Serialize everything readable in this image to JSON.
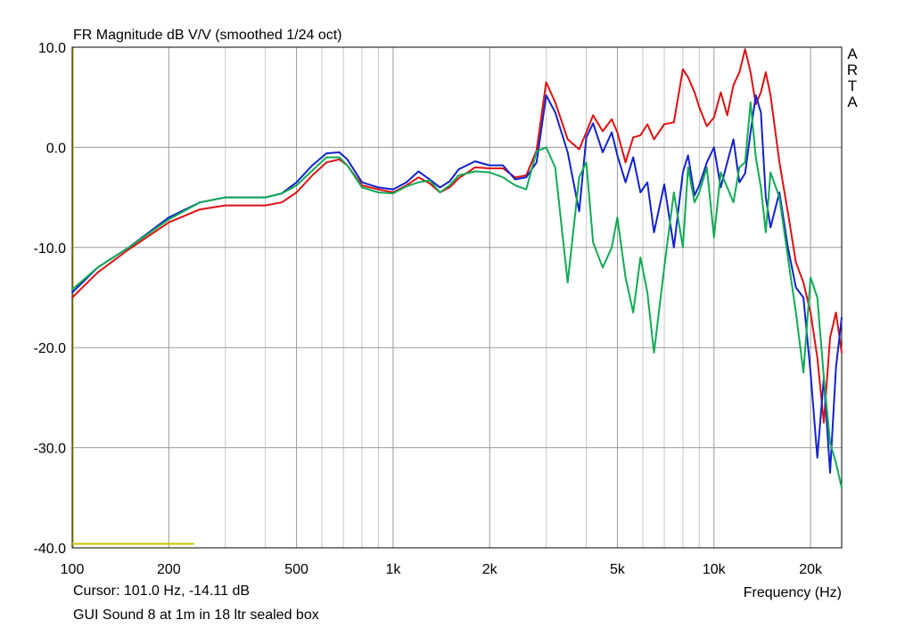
{
  "chart_data": {
    "type": "line",
    "title": "FR Magnitude dB V/V (smoothed 1/24 oct)",
    "xlabel": "Frequency (Hz)",
    "ylabel": "",
    "xscale": "log",
    "xlim": [
      100,
      25000
    ],
    "ylim": [
      -40,
      10
    ],
    "grid": true,
    "x_ticks": [
      100,
      200,
      500,
      1000,
      2000,
      5000,
      10000,
      20000
    ],
    "x_tick_labels": [
      "100",
      "200",
      "500",
      "1k",
      "2k",
      "5k",
      "10k",
      "20k"
    ],
    "y_ticks": [
      10,
      0,
      -10,
      -20,
      -30,
      -40
    ],
    "y_tick_labels": [
      "10.0",
      "0.0",
      "-10.0",
      "-20.0",
      "-30.0",
      "-40.0"
    ],
    "marker": {
      "x": [
        100,
        240
      ],
      "y": -39.6,
      "color": "#c8c000"
    },
    "series": [
      {
        "color": "#dd1111",
        "x": [
          100,
          120,
          150,
          200,
          250,
          300,
          350,
          400,
          450,
          500,
          560,
          620,
          680,
          720,
          800,
          900,
          1000,
          1100,
          1200,
          1300,
          1400,
          1500,
          1600,
          1800,
          2000,
          2200,
          2400,
          2600,
          2800,
          3000,
          3200,
          3500,
          3800,
          4000,
          4200,
          4500,
          4800,
          5000,
          5300,
          5600,
          5900,
          6200,
          6500,
          7000,
          7500,
          8000,
          8300,
          8700,
          9000,
          9500,
          10000,
          10500,
          11000,
          11500,
          12000,
          12500,
          13000,
          13500,
          14000,
          14500,
          15000,
          16000,
          17000,
          18000,
          19000,
          20000,
          21000,
          22000,
          23000,
          24000,
          25000
        ],
        "y": [
          -15,
          -12.5,
          -10.2,
          -7.5,
          -6.2,
          -5.8,
          -5.8,
          -5.8,
          -5.5,
          -4.5,
          -2.8,
          -1.5,
          -1.2,
          -1.8,
          -3.8,
          -4.2,
          -4.5,
          -3.8,
          -3,
          -3.6,
          -4.5,
          -4,
          -3.1,
          -2,
          -2.1,
          -2.1,
          -3,
          -2.8,
          -0.3,
          6.5,
          4.5,
          0.8,
          -0.2,
          1.5,
          3.2,
          1.6,
          2.8,
          1.5,
          -1.5,
          1,
          1.2,
          2.3,
          0.8,
          2.3,
          2.5,
          7.8,
          7,
          5.5,
          4,
          2.1,
          3,
          5.5,
          3.2,
          6.2,
          7.5,
          9.8,
          7.5,
          4.3,
          5.5,
          7.5,
          5.2,
          -1.5,
          -6.5,
          -11.5,
          -13.5,
          -16.5,
          -21,
          -27.5,
          -19,
          -16.5,
          -20.5
        ]
      },
      {
        "color": "#1122cc",
        "x": [
          100,
          120,
          150,
          200,
          250,
          300,
          350,
          400,
          450,
          500,
          560,
          620,
          680,
          720,
          800,
          900,
          1000,
          1100,
          1200,
          1300,
          1400,
          1500,
          1600,
          1800,
          2000,
          2200,
          2400,
          2600,
          2800,
          3000,
          3200,
          3500,
          3800,
          4000,
          4200,
          4500,
          4800,
          5000,
          5300,
          5600,
          5900,
          6200,
          6500,
          7000,
          7500,
          8000,
          8300,
          8700,
          9000,
          9500,
          10000,
          10500,
          11000,
          11500,
          12000,
          12500,
          13000,
          13500,
          14000,
          14500,
          15000,
          16000,
          17000,
          18000,
          19000,
          20000,
          21000,
          22000,
          23000,
          24000,
          25000
        ],
        "y": [
          -14.5,
          -12,
          -10,
          -7,
          -5.5,
          -5,
          -5,
          -5,
          -4.6,
          -3.5,
          -1.8,
          -0.6,
          -0.5,
          -1.2,
          -3.5,
          -4,
          -4.2,
          -3.5,
          -2.4,
          -3.2,
          -4,
          -3.4,
          -2.2,
          -1.4,
          -1.8,
          -1.8,
          -3.2,
          -3,
          -1.5,
          5.2,
          3.5,
          -0.5,
          -6.4,
          1,
          2.4,
          -0.5,
          1.5,
          -0.8,
          -3.5,
          -1,
          -4.5,
          -3.5,
          -8.5,
          -3.7,
          -10,
          -2.5,
          -0.8,
          -4.8,
          -3.8,
          -1.5,
          0,
          -4,
          -1.5,
          0.8,
          -3.5,
          -2.6,
          1.5,
          5.2,
          3.5,
          -5,
          -8,
          -4.5,
          -10,
          -14,
          -15,
          -22.5,
          -31,
          -23,
          -32.5,
          -22,
          -17
        ]
      },
      {
        "color": "#11aa55",
        "x": [
          100,
          120,
          150,
          200,
          250,
          300,
          350,
          400,
          450,
          500,
          560,
          620,
          680,
          720,
          800,
          900,
          1000,
          1100,
          1200,
          1300,
          1400,
          1500,
          1600,
          1800,
          2000,
          2200,
          2400,
          2600,
          2800,
          3000,
          3200,
          3500,
          3800,
          4000,
          4200,
          4500,
          4800,
          5000,
          5300,
          5600,
          5900,
          6200,
          6500,
          7000,
          7500,
          8000,
          8300,
          8700,
          9000,
          9500,
          10000,
          10500,
          11000,
          11500,
          12000,
          12500,
          13000,
          13500,
          14000,
          14500,
          15000,
          16000,
          17000,
          18000,
          19000,
          20000,
          21000,
          22000,
          23000,
          24000,
          25000
        ],
        "y": [
          -14.2,
          -12,
          -10,
          -7.2,
          -5.5,
          -5,
          -5,
          -5,
          -4.6,
          -3.8,
          -2.3,
          -1,
          -1,
          -1.8,
          -4,
          -4.5,
          -4.6,
          -3.9,
          -3.5,
          -3.3,
          -4.5,
          -3.8,
          -2.8,
          -2.4,
          -2.5,
          -3,
          -3.8,
          -4.2,
          -0.4,
          0,
          -2,
          -13.5,
          -3,
          -1.5,
          -9.5,
          -12,
          -10,
          -7,
          -13,
          -16.5,
          -11,
          -14.5,
          -20.5,
          -12,
          -4.5,
          -10,
          -2,
          -5.5,
          -4.5,
          -2,
          -9,
          -2.5,
          -4,
          -5.5,
          -2,
          -1.5,
          4.5,
          -1,
          -4,
          -8.5,
          -2.5,
          -5,
          -11,
          -16.5,
          -22.5,
          -13,
          -15,
          -23,
          -29.5,
          -31.5,
          -34
        ]
      }
    ]
  },
  "cursor_readout": "Cursor: 101.0 Hz, -14.11 dB",
  "caption": "GUI Sound 8 at 1m in 18 ltr sealed box",
  "watermark": [
    "A",
    "R",
    "T",
    "A"
  ]
}
